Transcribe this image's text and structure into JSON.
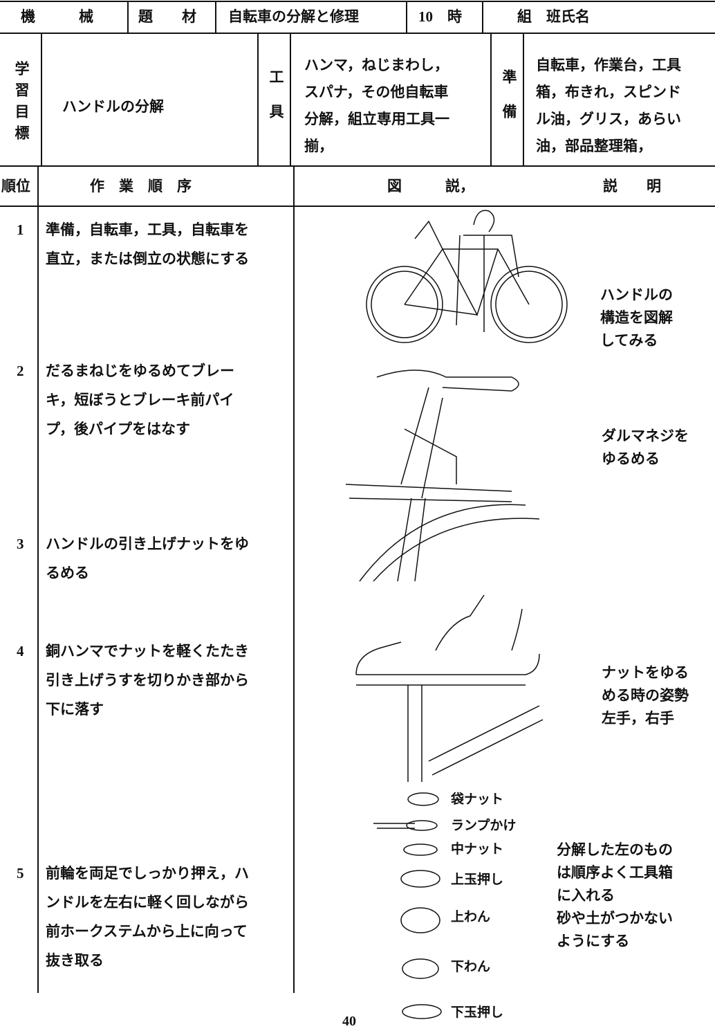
{
  "header": {
    "subject_label": "機　　　械",
    "topic_label": "題　　材",
    "topic": "自転車の分解と修理",
    "hours": "10　時",
    "group": "組　班氏名"
  },
  "goal": {
    "label": "学習目標",
    "text": "ハンドルの分解",
    "tools_label": "工　具",
    "tools": [
      "ハンマ，ねじまわし，",
      "スパナ，その他自転車",
      "分解，組立専用工具一",
      "揃，"
    ],
    "prep_label": "準　備",
    "prep": [
      "自転車，作業台，工具",
      "箱，布きれ，スピンド",
      "ル油，グリス，あらい",
      "油，部品整理箱，"
    ]
  },
  "columns": [
    "順位",
    "作　業　順　序",
    "図　　　説，",
    "説　　明"
  ],
  "steps": [
    {
      "no": "1",
      "text": [
        "準備，自転車，工具，自転車を",
        "直立，または倒立の状態にする"
      ],
      "note": [
        "ハンドルの",
        "構造を図解",
        "してみる"
      ]
    },
    {
      "no": "2",
      "text": [
        "だるまねじをゆるめてブレー",
        "キ，短ぼうとブレーキ前パイ",
        "プ，後パイプをはなす"
      ],
      "note": [
        "ダルマネジを",
        "ゆるめる"
      ]
    },
    {
      "no": "3",
      "text": [
        "ハンドルの引き上げナットをゆ",
        "るめる"
      ],
      "note": []
    },
    {
      "no": "4",
      "text": [
        "銅ハンマでナットを軽くたたき",
        "引き上げうすを切りかき部から",
        "下に落す"
      ],
      "note": [
        "ナットをゆる",
        "める時の姿勢",
        "左手，右手"
      ]
    },
    {
      "no": "5",
      "text": [
        "前輪を両足でしっかり押え，ハ",
        "ンドルを左右に軽く回しながら",
        "前ホークステムから上に向って",
        "抜き取る"
      ],
      "note": [
        "分解した左のもの",
        "は順序よく工具箱",
        "に入れる",
        "砂や土がつかない",
        "ようにする"
      ]
    }
  ],
  "parts": [
    "袋ナット",
    "ランプかけ",
    "中ナット",
    "上玉押し",
    "上わん",
    "下わん",
    "下玉押し"
  ],
  "page_number": "40"
}
